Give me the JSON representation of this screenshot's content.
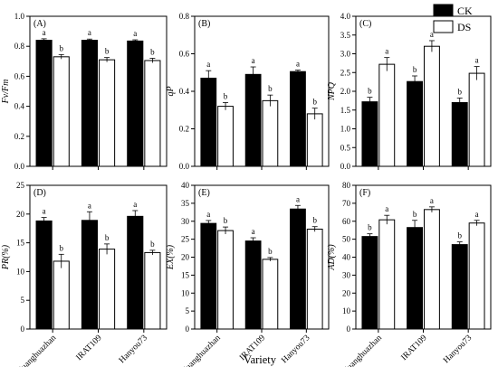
{
  "legend": {
    "entries": [
      {
        "label": "CK",
        "color": "#000000"
      },
      {
        "label": "DS",
        "color": "#ffffff"
      }
    ],
    "placement": "top-right"
  },
  "xaxis_label": "Variety",
  "chart_data": [
    {
      "type": "bar",
      "panel_label": "(A)",
      "ylabel": "Fv/Fm",
      "ylim": [
        0,
        1.0
      ],
      "yticks": [
        0,
        0.2,
        0.4,
        0.6,
        0.8,
        1.0
      ],
      "ytick_labels": [
        "0.0",
        "0.2",
        "0.4",
        "0.6",
        "0.8",
        "1.0"
      ],
      "categories": [
        "Huanghuazhan",
        "IRAT109",
        "Hanyou73"
      ],
      "series": [
        {
          "name": "CK",
          "values": [
            0.84,
            0.84,
            0.835
          ],
          "errors": [
            0.01,
            0.008,
            0.008
          ],
          "letters": [
            "a",
            "a",
            "a"
          ]
        },
        {
          "name": "DS",
          "values": [
            0.73,
            0.71,
            0.705
          ],
          "errors": [
            0.015,
            0.015,
            0.015
          ],
          "letters": [
            "b",
            "b",
            "b"
          ]
        }
      ]
    },
    {
      "type": "bar",
      "panel_label": "(B)",
      "ylabel": "qP",
      "ylim": [
        0,
        0.8
      ],
      "yticks": [
        0,
        0.2,
        0.4,
        0.6,
        0.8
      ],
      "ytick_labels": [
        "0.0",
        "0.2",
        "0.4",
        "0.6",
        "0.8"
      ],
      "categories": [
        "Huanghuazhan",
        "IRAT109",
        "Hanyou73"
      ],
      "series": [
        {
          "name": "CK",
          "values": [
            0.47,
            0.49,
            0.505
          ],
          "errors": [
            0.04,
            0.04,
            0.008
          ],
          "letters": [
            "a",
            "a",
            "a"
          ]
        },
        {
          "name": "DS",
          "values": [
            0.32,
            0.35,
            0.28
          ],
          "errors": [
            0.02,
            0.03,
            0.03
          ],
          "letters": [
            "b",
            "b",
            "b"
          ]
        }
      ]
    },
    {
      "type": "bar",
      "panel_label": "(C)",
      "ylabel": "NPQ",
      "ylim": [
        0,
        4.0
      ],
      "yticks": [
        0,
        0.5,
        1.0,
        1.5,
        2.0,
        2.5,
        3.0,
        3.5,
        4.0
      ],
      "ytick_labels": [
        "0.0",
        "0.5",
        "1.0",
        "1.5",
        "2.0",
        "2.5",
        "3.0",
        "3.5",
        "4.0"
      ],
      "categories": [
        "Huanghuazhan",
        "IRAT109",
        "Hanyou73"
      ],
      "series": [
        {
          "name": "CK",
          "values": [
            1.72,
            2.26,
            1.7
          ],
          "errors": [
            0.12,
            0.15,
            0.12
          ],
          "letters": [
            "b",
            "b",
            "b"
          ]
        },
        {
          "name": "DS",
          "values": [
            2.72,
            3.2,
            2.48
          ],
          "errors": [
            0.18,
            0.15,
            0.18
          ],
          "letters": [
            "a",
            "a",
            "a"
          ]
        }
      ]
    },
    {
      "type": "bar",
      "panel_label": "(D)",
      "ylabel": "PR(%)",
      "ylim": [
        0,
        25
      ],
      "yticks": [
        0,
        5,
        10,
        15,
        20,
        25
      ],
      "ytick_labels": [
        "0",
        "5",
        "10",
        "15",
        "20",
        "25"
      ],
      "categories": [
        "Huanghuazhan",
        "IRAT109",
        "Hanyou73"
      ],
      "series": [
        {
          "name": "CK",
          "values": [
            18.8,
            18.9,
            19.6
          ],
          "errors": [
            0.6,
            1.5,
            1.0
          ],
          "letters": [
            "a",
            "a",
            "a"
          ]
        },
        {
          "name": "DS",
          "values": [
            11.8,
            13.9,
            13.3
          ],
          "errors": [
            1.2,
            0.9,
            0.4
          ],
          "letters": [
            "b",
            "b",
            "b"
          ]
        }
      ]
    },
    {
      "type": "bar",
      "panel_label": "(E)",
      "ylabel": "EX(%)",
      "ylim": [
        0,
        40
      ],
      "yticks": [
        0,
        5,
        10,
        15,
        20,
        25,
        30,
        35,
        40
      ],
      "ytick_labels": [
        "0",
        "5",
        "10",
        "15",
        "20",
        "25",
        "30",
        "35",
        "40"
      ],
      "categories": [
        "Huanghuazhan",
        "IRAT109",
        "Hanyou73"
      ],
      "series": [
        {
          "name": "CK",
          "values": [
            29.4,
            24.5,
            33.4
          ],
          "errors": [
            0.8,
            0.9,
            1.0
          ],
          "letters": [
            "a",
            "a",
            "a"
          ]
        },
        {
          "name": "DS",
          "values": [
            27.4,
            19.4,
            27.8
          ],
          "errors": [
            1.0,
            0.5,
            0.7
          ],
          "letters": [
            "b",
            "b",
            "b"
          ]
        }
      ]
    },
    {
      "type": "bar",
      "panel_label": "(F)",
      "ylabel": "AD(%)",
      "ylim": [
        0,
        80
      ],
      "yticks": [
        0,
        10,
        20,
        30,
        40,
        50,
        60,
        70,
        80
      ],
      "ytick_labels": [
        "0",
        "10",
        "20",
        "30",
        "40",
        "50",
        "60",
        "70",
        "80"
      ],
      "categories": [
        "Huanghuazhan",
        "IRAT109",
        "Hanyou73"
      ],
      "series": [
        {
          "name": "CK",
          "values": [
            51.5,
            56.5,
            47.0
          ],
          "errors": [
            1.5,
            4.0,
            1.5
          ],
          "letters": [
            "b",
            "b",
            "b"
          ]
        },
        {
          "name": "DS",
          "values": [
            60.8,
            66.5,
            59.0
          ],
          "errors": [
            2.5,
            1.5,
            1.5
          ],
          "letters": [
            "a",
            "a",
            "a"
          ]
        }
      ]
    }
  ]
}
